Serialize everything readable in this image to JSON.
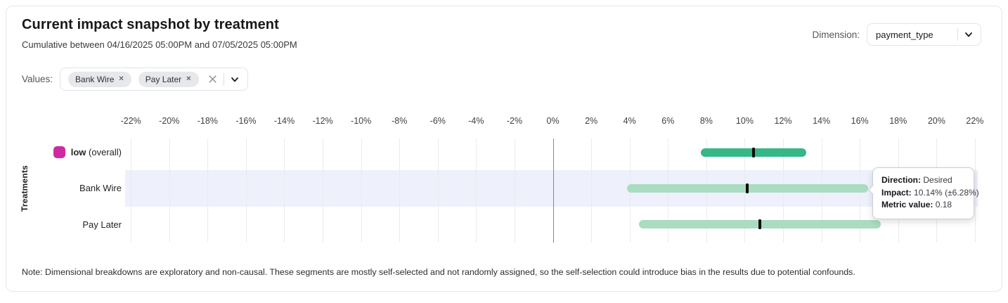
{
  "header": {
    "title": "Current impact snapshot by treatment",
    "subtitle": "Cumulative between 04/16/2025 05:00PM and 07/05/2025 05:00PM"
  },
  "dimension": {
    "label": "Dimension:",
    "selected": "payment_type"
  },
  "values_filter": {
    "label": "Values:",
    "chips": [
      "Bank Wire",
      "Pay Later"
    ],
    "chip_close_glyph": "✕"
  },
  "chart_data": {
    "type": "bar",
    "subtype": "horizontal-range-bars-with-point-estimate",
    "ylabel": "Treatments",
    "x_axis": {
      "tick_min": -22,
      "tick_max": 22,
      "step": 2,
      "suffix": "%",
      "xlim": [
        -22.3,
        22.15
      ]
    },
    "grid": true,
    "marker_color": "#0b0b0c",
    "highlight_color": "#eef0fc",
    "rows": [
      {
        "label_bold": "low",
        "label": "(overall)",
        "swatch_color": "#cf2a9f",
        "low": 7.71,
        "high": 13.21,
        "center": 10.46,
        "bar_color": "#35b787",
        "highlighted": false
      },
      {
        "label": "Bank Wire",
        "low": 3.86,
        "high": 16.42,
        "center": 10.14,
        "bar_color": "#a9dcc0",
        "highlighted": true
      },
      {
        "label": "Pay Later",
        "low": 4.49,
        "high": 17.09,
        "center": 10.79,
        "bar_color": "#a9dcc0",
        "highlighted": false
      }
    ]
  },
  "tooltip": {
    "rows": [
      {
        "label": "Direction:",
        "value": "Desired"
      },
      {
        "label": "Impact:",
        "value": "10.14% (±6.28%)"
      },
      {
        "label": "Metric value:",
        "value": "0.18"
      }
    ]
  },
  "note": "Note: Dimensional breakdowns are exploratory and non-causal. These segments are mostly self-selected and not randomly assigned, so the self-selection could introduce bias in the results due to potential confounds."
}
